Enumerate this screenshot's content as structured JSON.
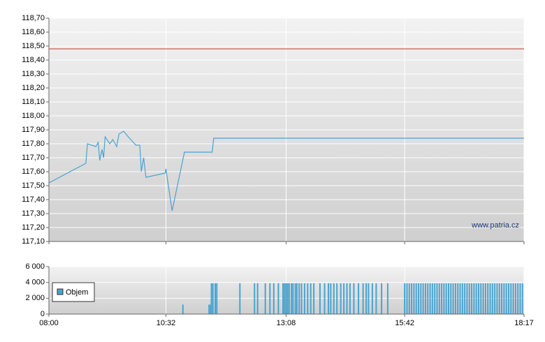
{
  "chart_data": [
    {
      "type": "line",
      "color": "#4aa3cf",
      "xlim": [
        "08:00",
        "18:17"
      ],
      "ylim": [
        117.1,
        118.7
      ],
      "yticks": [
        {
          "value": 117.1,
          "label": "117,10"
        },
        {
          "value": 117.2,
          "label": "117,20"
        },
        {
          "value": 117.3,
          "label": "117,30"
        },
        {
          "value": 117.4,
          "label": "117,40"
        },
        {
          "value": 117.5,
          "label": "117,50"
        },
        {
          "value": 117.6,
          "label": "117,60"
        },
        {
          "value": 117.7,
          "label": "117,70"
        },
        {
          "value": 117.8,
          "label": "117,80"
        },
        {
          "value": 117.9,
          "label": "117,90"
        },
        {
          "value": 118.0,
          "label": "118,00"
        },
        {
          "value": 118.1,
          "label": "118,10"
        },
        {
          "value": 118.2,
          "label": "118,20"
        },
        {
          "value": 118.3,
          "label": "118,30"
        },
        {
          "value": 118.4,
          "label": "118,40"
        },
        {
          "value": 118.5,
          "label": "118,50"
        },
        {
          "value": 118.6,
          "label": "118,60"
        },
        {
          "value": 118.7,
          "label": "118,70"
        }
      ],
      "reference_line": 118.48,
      "reference_color": "#c0392b",
      "watermark": "www.patria.cz",
      "x": [
        "08:00",
        "08:48",
        "08:50",
        "09:01",
        "09:04",
        "09:06",
        "09:09",
        "09:11",
        "09:13",
        "09:19",
        "09:23",
        "09:26",
        "09:28",
        "09:31",
        "09:37",
        "09:43",
        "09:53",
        "09:58",
        "10:00",
        "10:03",
        "10:06",
        "10:31",
        "10:32",
        "10:34",
        "10:40",
        "10:56",
        "11:32",
        "11:34",
        "18:17"
      ],
      "values": [
        117.52,
        117.66,
        117.8,
        117.78,
        117.81,
        117.68,
        117.76,
        117.7,
        117.85,
        117.8,
        117.83,
        117.8,
        117.78,
        117.87,
        117.89,
        117.85,
        117.79,
        117.79,
        117.6,
        117.7,
        117.56,
        117.59,
        117.62,
        117.54,
        117.32,
        117.74,
        117.74,
        117.84,
        117.84
      ]
    },
    {
      "type": "bar",
      "color": "#4aa3cf",
      "legend": "Objem",
      "xlim": [
        "08:00",
        "18:17"
      ],
      "xticks": [
        "08:00",
        "10:32",
        "13:08",
        "15:42",
        "18:17"
      ],
      "ylim": [
        0,
        6000
      ],
      "yticks": [
        0,
        {
          "value": 2000,
          "label": "2 000"
        },
        {
          "value": 4000,
          "label": "4 000"
        },
        {
          "value": 6000,
          "label": "6 000"
        }
      ],
      "x": [
        "10:54",
        "11:28",
        "11:30",
        "11:31",
        "11:33",
        "11:36",
        "11:38",
        "12:08",
        "12:27",
        "12:31",
        "12:41",
        "12:47",
        "12:52",
        "12:58",
        "13:04",
        "13:06",
        "13:08",
        "13:10",
        "13:12",
        "13:15",
        "13:17",
        "13:20",
        "13:22",
        "13:25",
        "13:28",
        "13:32",
        "13:36",
        "13:40",
        "13:44",
        "13:52",
        "13:58",
        "14:03",
        "14:06",
        "14:10",
        "14:14",
        "14:19",
        "14:23",
        "14:27",
        "14:31",
        "14:36",
        "14:42",
        "14:48",
        "14:52",
        "14:55",
        "15:00",
        "15:05",
        "15:12",
        "15:20",
        "15:42",
        "15:45",
        "15:48",
        "15:51",
        "15:54",
        "15:57",
        "16:00",
        "16:03",
        "16:06",
        "16:09",
        "16:12",
        "16:15",
        "16:18",
        "16:21",
        "16:24",
        "16:27",
        "16:30",
        "16:33",
        "16:36",
        "16:39",
        "16:42",
        "16:45",
        "16:48",
        "16:51",
        "16:54",
        "16:57",
        "17:00",
        "17:03",
        "17:06",
        "17:09",
        "17:12",
        "17:15",
        "17:18",
        "17:21",
        "17:24",
        "17:27",
        "17:30",
        "17:33",
        "17:36",
        "17:39",
        "17:42",
        "17:45",
        "17:48",
        "17:51",
        "17:54",
        "17:57",
        "18:00",
        "18:03",
        "18:06",
        "18:09",
        "18:12",
        "18:15"
      ],
      "values": [
        1200,
        1200,
        1200,
        3900,
        3900,
        3900,
        3900,
        3900,
        3900,
        3900,
        3900,
        3900,
        3900,
        3900,
        3900,
        3900,
        3900,
        3900,
        3900,
        3900,
        3900,
        3900,
        3900,
        3900,
        3900,
        3900,
        3900,
        3900,
        3900,
        3900,
        3900,
        3900,
        3900,
        3900,
        3900,
        3900,
        3900,
        3900,
        3900,
        3900,
        3900,
        3900,
        3900,
        3900,
        3900,
        3900,
        3900,
        3900,
        3900,
        3900,
        3900,
        3900,
        3900,
        3900,
        3900,
        3900,
        3900,
        3900,
        3900,
        3900,
        3900,
        3900,
        3900,
        3900,
        3900,
        3900,
        3900,
        3900,
        3900,
        3900,
        3900,
        3900,
        3900,
        3900,
        3900,
        3900,
        3900,
        3900,
        3900,
        3900,
        3900,
        3900,
        3900,
        3900,
        3900,
        3900,
        3900,
        3900,
        3900,
        3900,
        3900,
        3900,
        3900,
        3900,
        3900,
        3900,
        3900,
        3900,
        3900,
        3900
      ]
    }
  ]
}
